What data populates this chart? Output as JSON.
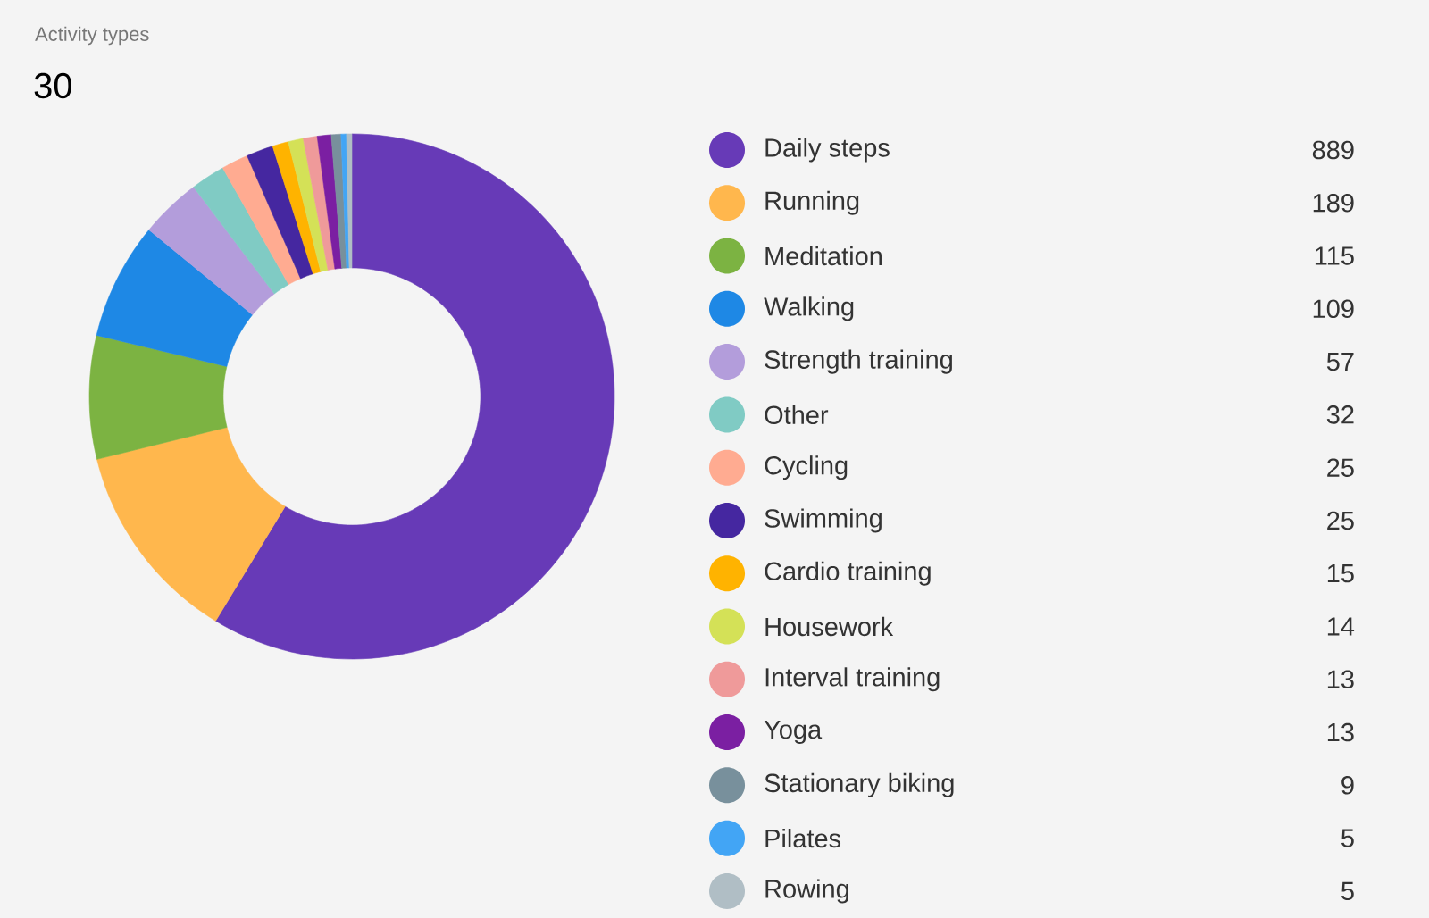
{
  "chart_data": {
    "type": "donut",
    "title": "Activity types",
    "subtitle": "30",
    "categories": [
      "Daily steps",
      "Running",
      "Meditation",
      "Walking",
      "Strength training",
      "Other",
      "Cycling",
      "Swimming",
      "Cardio training",
      "Housework",
      "Interval training",
      "Yoga",
      "Stationary biking",
      "Pilates",
      "Rowing"
    ],
    "values": [
      889,
      189,
      115,
      109,
      57,
      32,
      25,
      25,
      15,
      14,
      13,
      13,
      9,
      5,
      5
    ],
    "colors": [
      "#673ab7",
      "#ffb74d",
      "#7cb342",
      "#1e88e5",
      "#b39ddb",
      "#80cbc4",
      "#ffab91",
      "#4527a0",
      "#ffb300",
      "#d4e157",
      "#ef9a9a",
      "#7b1fa2",
      "#78909c",
      "#42a5f5",
      "#b0bec5"
    ],
    "data_labels": true,
    "legend": "right"
  }
}
